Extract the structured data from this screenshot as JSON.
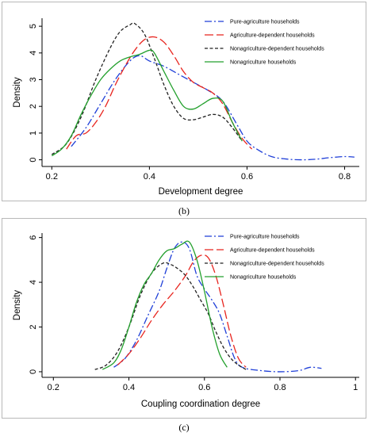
{
  "chart_data": [
    {
      "type": "line",
      "panel_label": "(b)",
      "xlabel": "Development degree",
      "ylabel": "Density",
      "xlim": [
        0.18,
        0.83
      ],
      "ylim": [
        -0.25,
        5.3
      ],
      "xticks": [
        0.2,
        0.4,
        0.6,
        0.8
      ],
      "xtick_labels": [
        "0.2",
        "0.4",
        "0.6",
        "0.8"
      ],
      "yticks": [
        0,
        1,
        2,
        3,
        4,
        5
      ],
      "ytick_labels": [
        "0",
        "1",
        "2",
        "3",
        "4",
        "5"
      ],
      "grid": false,
      "legend_position": "top-right",
      "series": [
        {
          "name": "Pure-agriculture households",
          "color": "#1f3fd8",
          "dash": "dashdot",
          "x": [
            0.24,
            0.27,
            0.3,
            0.33,
            0.36,
            0.38,
            0.4,
            0.43,
            0.46,
            0.49,
            0.52,
            0.55,
            0.58,
            0.6,
            0.62,
            0.65,
            0.68,
            0.71,
            0.74,
            0.77,
            0.8,
            0.82
          ],
          "y": [
            0.5,
            1.2,
            2.1,
            3.0,
            3.7,
            3.9,
            3.7,
            3.5,
            3.2,
            2.9,
            2.6,
            2.2,
            1.3,
            0.7,
            0.4,
            0.12,
            0.03,
            0.0,
            0.02,
            0.08,
            0.12,
            0.1
          ]
        },
        {
          "name": "Agriculture-dependent households",
          "color": "#e8251f",
          "dash": "longdash",
          "x": [
            0.23,
            0.25,
            0.27,
            0.29,
            0.31,
            0.33,
            0.35,
            0.37,
            0.39,
            0.41,
            0.43,
            0.45,
            0.47,
            0.49,
            0.51,
            0.53,
            0.55,
            0.57,
            0.59,
            0.61
          ],
          "y": [
            0.4,
            0.9,
            1.0,
            1.4,
            2.0,
            2.8,
            3.5,
            4.1,
            4.5,
            4.6,
            4.4,
            3.9,
            3.3,
            2.9,
            2.7,
            2.5,
            2.1,
            1.4,
            0.8,
            0.4
          ]
        },
        {
          "name": "Nonagriculture-dependent households",
          "color": "#222222",
          "dash": "shortdash",
          "x": [
            0.2,
            0.23,
            0.26,
            0.29,
            0.32,
            0.34,
            0.36,
            0.37,
            0.39,
            0.41,
            0.43,
            0.45,
            0.47,
            0.49,
            0.51,
            0.53,
            0.55,
            0.57,
            0.59
          ],
          "y": [
            0.2,
            0.6,
            1.6,
            3.0,
            4.2,
            4.8,
            5.05,
            5.1,
            4.7,
            3.8,
            2.8,
            2.0,
            1.55,
            1.5,
            1.6,
            1.7,
            1.6,
            1.2,
            0.7
          ]
        },
        {
          "name": "Nonagriculture households",
          "color": "#23a02d",
          "dash": "solid",
          "x": [
            0.2,
            0.22,
            0.24,
            0.26,
            0.28,
            0.3,
            0.32,
            0.34,
            0.36,
            0.38,
            0.4,
            0.41,
            0.43,
            0.45,
            0.47,
            0.49,
            0.51,
            0.53,
            0.55,
            0.57,
            0.59
          ],
          "y": [
            0.15,
            0.4,
            0.9,
            1.7,
            2.4,
            3.0,
            3.4,
            3.7,
            3.85,
            3.95,
            4.1,
            4.0,
            3.3,
            2.6,
            2.0,
            1.9,
            2.1,
            2.3,
            2.2,
            1.4,
            0.7
          ]
        }
      ]
    },
    {
      "type": "line",
      "panel_label": "(c)",
      "xlabel": "Coupling coordination degree",
      "ylabel": "Density",
      "xlim": [
        0.17,
        1.01
      ],
      "ylim": [
        -0.25,
        6.2
      ],
      "xticks": [
        0.2,
        0.4,
        0.6,
        0.8,
        1.0
      ],
      "xtick_labels": [
        "0.2",
        "0.4",
        "0.6",
        "0.8",
        "1"
      ],
      "yticks": [
        0,
        2,
        4,
        6
      ],
      "ytick_labels": [
        "0",
        "2",
        "4",
        "6"
      ],
      "grid": false,
      "legend_position": "top-right",
      "series": [
        {
          "name": "Pure-agriculture households",
          "color": "#1f3fd8",
          "dash": "dashdot",
          "x": [
            0.36,
            0.39,
            0.42,
            0.45,
            0.48,
            0.5,
            0.52,
            0.54,
            0.56,
            0.58,
            0.6,
            0.62,
            0.64,
            0.66,
            0.68,
            0.7,
            0.75,
            0.8,
            0.85,
            0.88,
            0.91
          ],
          "y": [
            0.2,
            0.6,
            1.4,
            2.5,
            3.6,
            4.6,
            5.5,
            5.8,
            5.5,
            4.3,
            3.7,
            3.2,
            2.6,
            1.6,
            0.6,
            0.2,
            0.05,
            0.0,
            0.05,
            0.2,
            0.15
          ]
        },
        {
          "name": "Agriculture-dependent households",
          "color": "#e8251f",
          "dash": "longdash",
          "x": [
            0.37,
            0.4,
            0.43,
            0.46,
            0.49,
            0.52,
            0.55,
            0.57,
            0.59,
            0.61,
            0.63,
            0.65,
            0.67,
            0.69,
            0.71
          ],
          "y": [
            0.3,
            0.8,
            1.5,
            2.3,
            3.0,
            3.6,
            4.3,
            4.9,
            5.2,
            5.1,
            4.3,
            3.0,
            1.6,
            0.6,
            0.2
          ]
        },
        {
          "name": "Nonagriculture-dependent households",
          "color": "#222222",
          "dash": "shortdash",
          "x": [
            0.31,
            0.34,
            0.37,
            0.4,
            0.43,
            0.46,
            0.49,
            0.51,
            0.53,
            0.55,
            0.57,
            0.59,
            0.61,
            0.63,
            0.65,
            0.67,
            0.69,
            0.71
          ],
          "y": [
            0.1,
            0.3,
            0.9,
            2.0,
            3.4,
            4.4,
            4.85,
            4.8,
            4.6,
            4.3,
            3.8,
            3.2,
            2.6,
            1.8,
            1.1,
            0.6,
            0.3,
            0.1
          ]
        },
        {
          "name": "Nonagriculture households",
          "color": "#23a02d",
          "dash": "solid",
          "x": [
            0.33,
            0.36,
            0.38,
            0.4,
            0.42,
            0.44,
            0.46,
            0.48,
            0.5,
            0.52,
            0.54,
            0.56,
            0.58,
            0.6,
            0.62,
            0.64,
            0.66
          ],
          "y": [
            0.1,
            0.4,
            1.0,
            2.0,
            3.1,
            3.9,
            4.4,
            5.0,
            5.4,
            5.5,
            5.7,
            5.8,
            5.0,
            3.6,
            2.0,
            0.8,
            0.2
          ]
        }
      ]
    }
  ]
}
